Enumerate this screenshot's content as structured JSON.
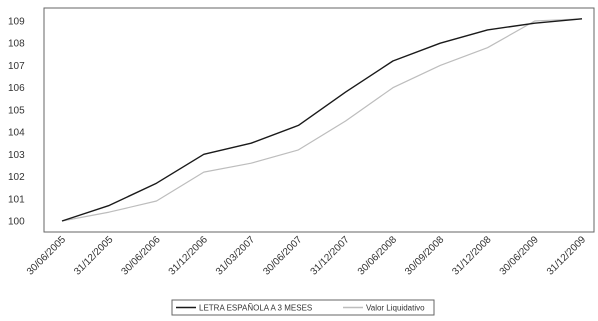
{
  "chart_data": {
    "type": "line",
    "x": [
      "30/06/2005",
      "31/12/2005",
      "30/06/2006",
      "31/12/2006",
      "31/03/2007",
      "30/06/2007",
      "31/12/2007",
      "30/06/2008",
      "30/09/2008",
      "31/12/2008",
      "30/06/2009",
      "31/12/2009"
    ],
    "yticks": [
      "100",
      "101",
      "102",
      "103",
      "104",
      "105",
      "106",
      "107",
      "108",
      "109"
    ],
    "ylim": [
      100,
      109
    ],
    "grid": false,
    "legend_position": "bottom",
    "colors": {
      "series_1": "#1a1a1a",
      "series_2": "#bdbdbd",
      "border": "#666666"
    },
    "series": [
      {
        "name": "LETRA ESPAÑOLA A 3 MESES",
        "values": [
          100.0,
          100.7,
          101.7,
          103.0,
          103.5,
          104.3,
          105.8,
          107.2,
          108.0,
          108.6,
          108.9,
          109.1
        ]
      },
      {
        "name": "Valor Liquidativo",
        "values": [
          100.0,
          100.4,
          100.9,
          102.2,
          102.6,
          103.2,
          104.5,
          106.0,
          107.0,
          107.8,
          109.0,
          109.1
        ]
      }
    ]
  }
}
